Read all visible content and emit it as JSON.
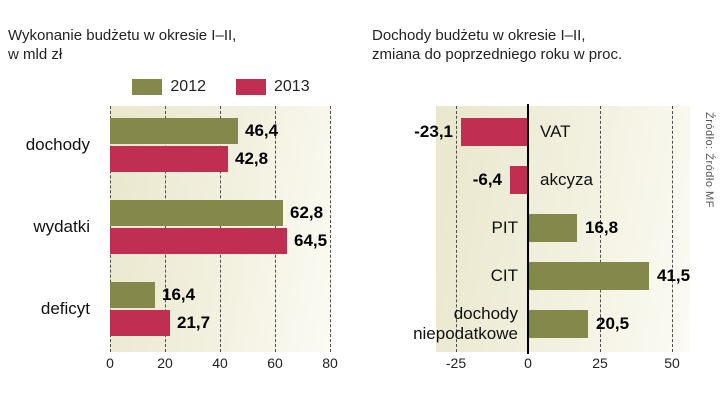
{
  "source_note": "Źródło: Źródło MF",
  "colors": {
    "olive": "#84894b",
    "crimson": "#c02e52",
    "plot_background_from": "#e9e7cc",
    "plot_background_to": "#fcfbf4"
  },
  "chart_data": [
    {
      "type": "bar",
      "orientation": "horizontal",
      "title_lines": [
        "Wykonanie budżetu w okresie I–II,",
        "w mld zł"
      ],
      "unit": "mld zł",
      "legend_position": "top",
      "grid": "dashed-vertical",
      "categories": [
        "dochody",
        "wydatki",
        "deficyt"
      ],
      "series": [
        {
          "name": "2012",
          "color": "#84894b",
          "values": [
            46.4,
            62.8,
            16.4
          ],
          "value_labels": [
            "46,4",
            "62,8",
            "16,4"
          ]
        },
        {
          "name": "2013",
          "color": "#c02e52",
          "values": [
            42.8,
            64.5,
            21.7
          ],
          "value_labels": [
            "42,8",
            "64,5",
            "21,7"
          ]
        }
      ],
      "x_ticks": [
        0,
        20,
        40,
        60,
        80
      ],
      "x_tick_labels": [
        "0",
        "20",
        "40",
        "60",
        "80"
      ],
      "xlim": [
        0,
        80
      ]
    },
    {
      "type": "bar",
      "orientation": "horizontal-diverging",
      "title_lines": [
        "Dochody budżetu w okresie I–II,",
        "zmiana do poprzedniego roku w proc."
      ],
      "unit": "proc.",
      "grid": "dashed-vertical",
      "zero_axis": true,
      "rows": [
        {
          "category": "VAT",
          "value": -23.1,
          "value_label": "-23,1",
          "color": "#c02e52"
        },
        {
          "category": "akcyza",
          "value": -6.4,
          "value_label": "-6,4",
          "color": "#c02e52"
        },
        {
          "category": "PIT",
          "value": 16.8,
          "value_label": "16,8",
          "color": "#84894b"
        },
        {
          "category": "CIT",
          "value": 41.5,
          "value_label": "41,5",
          "color": "#84894b"
        },
        {
          "category": "dochody niepodatkowe",
          "value": 20.5,
          "value_label": "20,5",
          "color": "#84894b"
        }
      ],
      "x_ticks": [
        -25,
        0,
        25,
        50
      ],
      "x_tick_labels": [
        "-25",
        "0",
        "25",
        "50"
      ],
      "xlim": [
        -25,
        50
      ]
    }
  ]
}
